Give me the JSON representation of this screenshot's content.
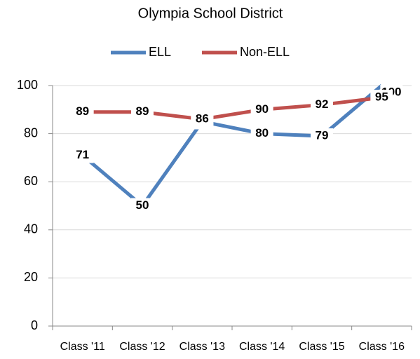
{
  "chart_data": {
    "type": "line",
    "title": "Olympia School District",
    "categories": [
      "Class '11",
      "Class '12",
      "Class '13",
      "Class '14",
      "Class '15",
      "Class '16"
    ],
    "series": [
      {
        "name": "ELL",
        "color": "#4f81bd",
        "values": [
          71,
          50,
          85,
          80,
          79,
          100
        ]
      },
      {
        "name": "Non-ELL",
        "color": "#c0504d",
        "values": [
          89,
          89,
          86,
          90,
          92,
          95
        ]
      }
    ],
    "ylim": [
      0,
      100
    ],
    "yticks": [
      0,
      20,
      40,
      60,
      80,
      100
    ],
    "grid": true
  }
}
